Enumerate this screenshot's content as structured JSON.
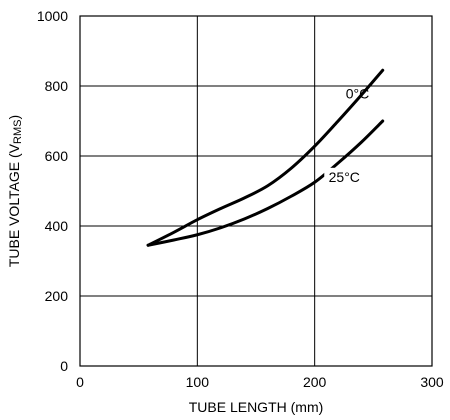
{
  "chart_data": {
    "type": "line",
    "title": "",
    "xlabel": "TUBE LENGTH (mm)",
    "ylabel": {
      "prefix": "TUBE VOLTAGE (V",
      "subscript": "RMS",
      "suffix": ")"
    },
    "xlim": [
      0,
      300
    ],
    "ylim": [
      0,
      1000
    ],
    "xticks": [
      0,
      100,
      200,
      300
    ],
    "yticks": [
      0,
      200,
      400,
      600,
      800,
      1000
    ],
    "grid": true,
    "legend": "none",
    "series": [
      {
        "name": "0°C",
        "x": [
          58,
          80,
          100,
          120,
          140,
          160,
          180,
          200,
          220,
          240,
          258
        ],
        "y": [
          345,
          382,
          418,
          450,
          480,
          515,
          565,
          628,
          700,
          775,
          845
        ]
      },
      {
        "name": "25°C",
        "x": [
          58,
          80,
          100,
          120,
          140,
          160,
          180,
          200,
          220,
          240,
          258
        ],
        "y": [
          345,
          360,
          375,
          395,
          420,
          450,
          485,
          525,
          580,
          640,
          700
        ]
      }
    ]
  }
}
